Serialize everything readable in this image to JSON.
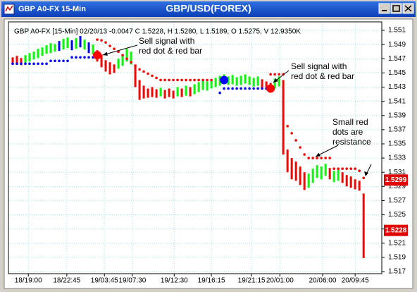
{
  "window_title": "GBP A0-FX 15-Min",
  "chart_data": {
    "type": "ohlc",
    "title": "GBP/USD(FOREX)",
    "subtitle": "GBP A0-FX [15-Min] 02/20/13 -0.0047 C 1.5228, H 1.5280, L 1.5189, O 1.5275, V 12.9350K",
    "xlim": [
      -1,
      87.3
    ],
    "xticks": [
      {
        "value": 3.7,
        "label": "18/19:00"
      },
      {
        "value": 12.8,
        "label": "18/22:45"
      },
      {
        "value": 21.7,
        "label": "19/03:45"
      },
      {
        "value": 28.3,
        "label": "19/07:30"
      },
      {
        "value": 38.2,
        "label": "19/12:30"
      },
      {
        "value": 47,
        "label": "19/16:15"
      },
      {
        "value": 56.5,
        "label": "19/21:15"
      },
      {
        "value": 63.2,
        "label": "20/01:00"
      },
      {
        "value": 73.3,
        "label": "20/06:00"
      },
      {
        "value": 81,
        "label": "20/09:45"
      }
    ],
    "ylim": [
      1.517,
      1.5521
    ],
    "yticks": [
      1.517,
      1.519,
      1.521,
      1.523,
      1.525,
      1.527,
      1.529,
      1.531,
      1.533,
      1.535,
      1.537,
      1.539,
      1.541,
      1.543,
      1.545,
      1.547,
      1.549,
      1.551
    ],
    "grid": true,
    "high": [
      1.5472,
      1.5474,
      1.5471,
      1.5475,
      1.5478,
      1.548,
      1.5484,
      1.5486,
      1.5489,
      1.5492,
      1.5491,
      1.5495,
      1.5498,
      1.55,
      1.5496,
      1.5499,
      1.5502,
      1.5497,
      1.5493,
      1.549,
      1.5482,
      1.5476,
      1.5468,
      1.5465,
      1.5462,
      1.547,
      1.5476,
      1.5484,
      1.548,
      1.5462,
      1.544,
      1.5432,
      1.5428,
      1.543,
      1.5427,
      1.5429,
      1.5426,
      1.5428,
      1.5425,
      1.543,
      1.5428,
      1.5432,
      1.543,
      1.5434,
      1.5437,
      1.544,
      1.5438,
      1.5441,
      1.5443,
      1.5446,
      1.5448,
      1.5445,
      1.5447,
      1.5444,
      1.5446,
      1.5448,
      1.5445,
      1.5443,
      1.5445,
      1.5441,
      1.5438,
      1.5436,
      1.5442,
      1.5445,
      1.544,
      1.5342,
      1.533,
      1.5325,
      1.5318,
      1.531,
      1.5308,
      1.5315,
      1.532,
      1.5318,
      1.5322,
      1.5316,
      1.5312,
      1.5315,
      1.531,
      1.5306,
      1.5304,
      1.53,
      1.5298,
      1.528
    ],
    "low": [
      1.5462,
      1.5463,
      1.5461,
      1.5464,
      1.5466,
      1.5469,
      1.5471,
      1.5474,
      1.5477,
      1.5478,
      1.548,
      1.5481,
      1.5483,
      1.5485,
      1.5482,
      1.5484,
      1.5486,
      1.5483,
      1.5478,
      1.5476,
      1.5466,
      1.5458,
      1.5452,
      1.5448,
      1.545,
      1.5456,
      1.546,
      1.5466,
      1.5462,
      1.543,
      1.5412,
      1.5414,
      1.5415,
      1.5416,
      1.5415,
      1.5417,
      1.5414,
      1.5416,
      1.5414,
      1.5417,
      1.5416,
      1.5418,
      1.5417,
      1.542,
      1.5423,
      1.5426,
      1.5425,
      1.5428,
      1.543,
      1.5432,
      1.5434,
      1.5433,
      1.5434,
      1.5432,
      1.5433,
      1.5435,
      1.5433,
      1.5431,
      1.5432,
      1.5429,
      1.5426,
      1.5424,
      1.5428,
      1.5431,
      1.5335,
      1.531,
      1.53,
      1.5298,
      1.5292,
      1.5285,
      1.5288,
      1.5295,
      1.5302,
      1.53,
      1.5305,
      1.53,
      1.5296,
      1.5298,
      1.5295,
      1.529,
      1.5288,
      1.5286,
      1.5284,
      1.5189
    ],
    "bar_colors": [
      "red",
      "red",
      "red",
      "lime",
      "lime",
      "lime",
      "lime",
      "lime",
      "lime",
      "lime",
      "lime",
      "blue",
      "lime",
      "lime",
      "blue",
      "lime",
      "blue",
      "lime",
      "blue",
      "lime",
      "red",
      "red",
      "red",
      "red",
      "red",
      "lime",
      "lime",
      "lime",
      "lime",
      "red",
      "red",
      "red",
      "red",
      "red",
      "red",
      "lime",
      "red",
      "red",
      "red",
      "lime",
      "red",
      "lime",
      "red",
      "lime",
      "lime",
      "lime",
      "lime",
      "lime",
      "lime",
      "lime",
      "lime",
      "lime",
      "lime",
      "lime",
      "lime",
      "lime",
      "lime",
      "lime",
      "lime",
      "red",
      "red",
      "red",
      "lime",
      "lime",
      "red",
      "red",
      "red",
      "red",
      "red",
      "red",
      "lime",
      "lime",
      "lime",
      "lime",
      "lime",
      "red",
      "lime",
      "lime",
      "red",
      "red",
      "red",
      "red",
      "red",
      "red"
    ],
    "resistance": [
      null,
      null,
      null,
      null,
      null,
      null,
      null,
      null,
      null,
      null,
      null,
      null,
      null,
      null,
      null,
      null,
      null,
      null,
      null,
      null,
      1.5497,
      1.5496,
      1.5493,
      1.5488,
      1.5484,
      1.548,
      1.5475,
      1.547,
      1.5465,
      1.546,
      1.5455,
      1.5452,
      1.5449,
      1.5446,
      1.5443,
      1.544,
      1.544,
      1.544,
      1.544,
      1.544,
      1.544,
      1.544,
      1.544,
      1.544,
      1.544,
      1.544,
      1.544,
      1.544,
      null,
      null,
      null,
      null,
      null,
      null,
      null,
      null,
      null,
      null,
      null,
      null,
      null,
      1.5448,
      1.5448,
      1.5448,
      1.5448,
      1.5375,
      1.5365,
      1.5355,
      1.5345,
      1.5335,
      1.533,
      1.533,
      1.533,
      1.533,
      1.533,
      1.533,
      1.5315,
      1.5315,
      1.5315,
      1.5315,
      1.5315,
      1.5315,
      1.5312,
      1.5302
    ],
    "resistance_color": "#ff0000",
    "support": [
      1.5463,
      1.5463,
      1.5463,
      1.5463,
      1.5463,
      1.5463,
      1.5463,
      1.5463,
      1.5463,
      1.5467,
      1.5467,
      1.5467,
      1.5467,
      1.5467,
      1.5472,
      1.5472,
      1.5472,
      1.5472,
      1.5472,
      1.5472,
      null,
      null,
      null,
      null,
      null,
      null,
      null,
      null,
      null,
      null,
      null,
      null,
      null,
      null,
      null,
      null,
      null,
      null,
      null,
      null,
      null,
      null,
      null,
      null,
      null,
      null,
      null,
      null,
      null,
      1.5422,
      1.5428,
      1.5428,
      1.5428,
      1.5428,
      1.5428,
      1.5428,
      1.5428,
      1.5428,
      1.5428,
      1.5428,
      1.5428,
      null,
      null,
      null,
      null,
      null,
      null,
      null,
      null,
      null,
      null,
      null,
      null,
      null,
      null,
      null,
      null,
      null,
      null,
      null,
      null,
      null,
      null,
      null
    ],
    "support_color": "#0000ff",
    "signal_dots": {
      "x": [
        20,
        50,
        61
      ],
      "y": [
        1.5475,
        1.544,
        1.5428
      ],
      "colors": [
        "#ff0000",
        "#0000ff",
        "#ff0000"
      ]
    },
    "price_tags": [
      1.5299,
      1.5228
    ],
    "annotations": [
      {
        "lines": [
          "Sell signal with",
          "red dot & red bar"
        ]
      },
      {
        "lines": [
          "Sell signal with",
          "red dot & red bar"
        ]
      },
      {
        "lines": [
          "Small red",
          "dots are",
          "resistance"
        ]
      }
    ]
  }
}
